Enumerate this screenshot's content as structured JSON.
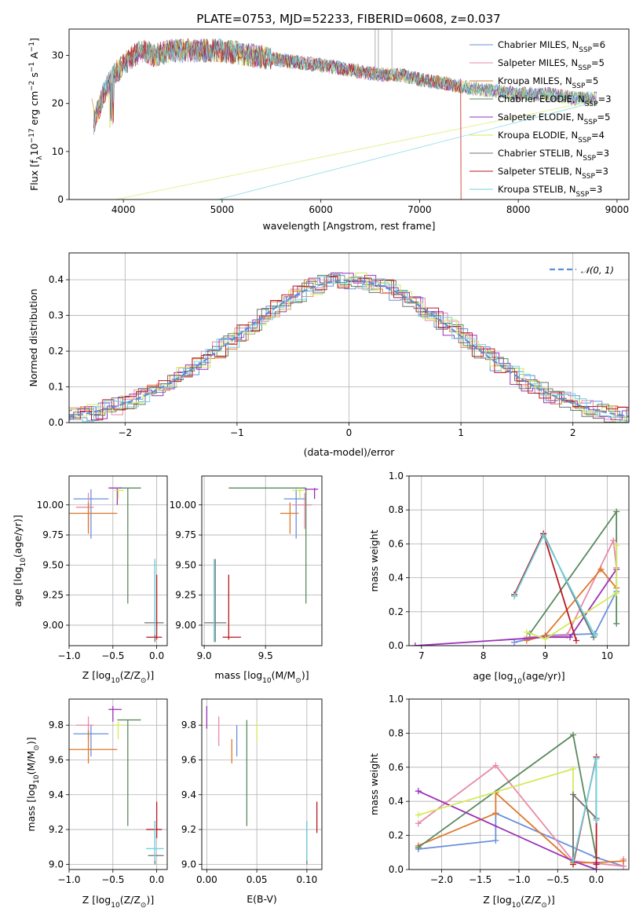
{
  "title": "PLATE=0753, MJD=52233, FIBERID=0608, z=0.037",
  "colors": {
    "Chabrier MILES": "#6a8fdc",
    "Salpeter MILES": "#e88aaa",
    "Kroupa MILES": "#e0782a",
    "Chabrier ELODIE": "#5a8a5e",
    "Salpeter ELODIE": "#9a30b8",
    "Kroupa ELODIE": "#d4ea5a",
    "Chabrier STELIB": "#707070",
    "Salpeter STELIB": "#b81820",
    "Kroupa STELIB": "#6fd4e0"
  },
  "legend_spectrum": [
    {
      "name": "Chabrier MILES, N",
      "sub": "SSP",
      "eq": "=6"
    },
    {
      "name": "Salpeter MILES, N",
      "sub": "SSP",
      "eq": "=5"
    },
    {
      "name": "Kroupa MILES, N",
      "sub": "SSP",
      "eq": "=5"
    },
    {
      "name": "Chabrier ELODIE, N",
      "sub": "SSP",
      "eq": "=3"
    },
    {
      "name": "Salpeter ELODIE, N",
      "sub": "SSP",
      "eq": "=5"
    },
    {
      "name": "Kroupa ELODIE, N",
      "sub": "SSP",
      "eq": "=4"
    },
    {
      "name": "Chabrier STELIB, N",
      "sub": "SSP",
      "eq": "=3"
    },
    {
      "name": "Salpeter STELIB, N",
      "sub": "SSP",
      "eq": "=3"
    },
    {
      "name": "Kroupa STELIB, N",
      "sub": "SSP",
      "eq": "=3"
    }
  ],
  "legend_hist": "𝒩(0, 1)",
  "chart_data": [
    {
      "type": "line",
      "panel": "spectrum",
      "xlabel": "wavelength [Angstrom, rest frame]",
      "ylabel_parts": [
        "Flux [f",
        "λ",
        "10",
        "−17",
        " erg cm",
        "−2",
        " s",
        "−1",
        " A",
        "−1",
        "]"
      ],
      "xlim": [
        3450,
        9120
      ],
      "ylim": [
        0,
        35.5
      ],
      "xticks": [
        4000,
        5000,
        6000,
        7000,
        8000,
        9000
      ],
      "yticks": [
        0,
        10,
        20,
        30
      ],
      "grid": false,
      "legend_position": "top-right",
      "approx_continuum_x": [
        3700,
        3800,
        3900,
        4000,
        4100,
        4200,
        4300,
        4500,
        4800,
        5000,
        5300,
        5600,
        6000,
        6300,
        6600,
        6800,
        7000,
        7300,
        7600,
        8000,
        8300,
        8600,
        8800
      ],
      "approx_continuum_y": [
        16,
        22,
        26,
        28,
        30,
        31,
        30,
        31,
        31,
        31,
        30,
        29,
        28,
        27,
        26,
        26,
        25,
        24,
        23,
        22,
        22,
        21,
        21
      ]
    },
    {
      "type": "line",
      "panel": "residual-histogram",
      "xlabel": "(data-model)/error",
      "ylabel": "Normed distribution",
      "xlim": [
        -2.5,
        2.5
      ],
      "ylim": [
        0,
        0.475
      ],
      "xticks": [
        -2,
        -1,
        0,
        1,
        2
      ],
      "yticks": [
        0.0,
        0.1,
        0.2,
        0.3,
        0.4
      ],
      "grid": true,
      "legend_position": "top-right",
      "series_reference": {
        "name": "𝒩(0, 1)",
        "mean": 0,
        "sigma": 1
      }
    },
    {
      "type": "scatter",
      "panel": "age-vs-Z",
      "xlabel_parts": [
        "Z [log",
        "10",
        "(Z/Z",
        "⊙",
        ")]"
      ],
      "ylabel_parts": [
        "age  [log",
        "10",
        "(age/yr)]"
      ],
      "xlim": [
        -1.0,
        0.12
      ],
      "ylim": [
        8.83,
        10.24
      ],
      "xticks": [
        -1.0,
        -0.5,
        0.0
      ],
      "yticks": [
        9.0,
        9.25,
        9.5,
        9.75,
        10.0
      ],
      "grid": true,
      "points": [
        {
          "s": "Chabrier MILES",
          "x": -0.75,
          "y": 10.05,
          "xl": -0.95,
          "xh": -0.55,
          "yl": 9.72,
          "yh": 10.13
        },
        {
          "s": "Salpeter MILES",
          "x": -0.78,
          "y": 9.98,
          "xl": -0.92,
          "xh": -0.72,
          "yl": 9.8,
          "yh": 10.1
        },
        {
          "s": "Kroupa MILES",
          "x": -0.78,
          "y": 9.93,
          "xl": -1.0,
          "xh": -0.45,
          "yl": 9.76,
          "yh": 10.02
        },
        {
          "s": "Chabrier ELODIE",
          "x": -0.33,
          "y": 10.14,
          "xl": -0.45,
          "xh": -0.18,
          "yl": 9.18,
          "yh": 10.14
        },
        {
          "s": "Salpeter ELODIE",
          "x": -0.45,
          "y": 10.14,
          "xl": -0.55,
          "xh": -0.4,
          "yl": 10.0,
          "yh": 10.14
        },
        {
          "s": "Kroupa ELODIE",
          "x": -0.44,
          "y": 10.12,
          "xl": -0.48,
          "xh": -0.38,
          "yl": 10.05,
          "yh": 10.14
        },
        {
          "s": "Chabrier STELIB",
          "x": -0.02,
          "y": 9.02,
          "xl": -0.14,
          "xh": 0.08,
          "yl": 8.86,
          "yh": 9.55
        },
        {
          "s": "Salpeter STELIB",
          "x": 0.0,
          "y": 8.9,
          "xl": -0.12,
          "xh": 0.06,
          "yl": 8.88,
          "yh": 9.42
        },
        {
          "s": "Kroupa STELIB",
          "x": -0.02,
          "y": 9.5,
          "xl": -0.03,
          "xh": -0.01,
          "yl": 8.92,
          "yh": 9.55
        }
      ]
    },
    {
      "type": "scatter",
      "panel": "age-vs-mass",
      "xlabel_parts": [
        "mass [log",
        "10",
        "(M/M",
        "⊙",
        ")]"
      ],
      "xlim": [
        8.98,
        9.96
      ],
      "ylim": [
        8.83,
        10.24
      ],
      "xticks": [
        9.0,
        9.5
      ],
      "yticks": [
        9.0,
        9.25,
        9.5,
        9.75,
        10.0
      ],
      "grid": true,
      "points": [
        {
          "s": "Chabrier MILES",
          "x": 9.75,
          "y": 10.05,
          "xl": 9.65,
          "xh": 9.83,
          "yl": 9.72,
          "yh": 10.13
        },
        {
          "s": "Salpeter MILES",
          "x": 9.82,
          "y": 10.0,
          "xl": 9.72,
          "xh": 9.88,
          "yl": 9.8,
          "yh": 10.1
        },
        {
          "s": "Kroupa MILES",
          "x": 9.7,
          "y": 9.93,
          "xl": 9.62,
          "xh": 9.77,
          "yl": 9.76,
          "yh": 10.02
        },
        {
          "s": "Chabrier ELODIE",
          "x": 9.83,
          "y": 10.14,
          "xl": 9.2,
          "xh": 9.83,
          "yl": 9.18,
          "yh": 10.14
        },
        {
          "s": "Salpeter ELODIE",
          "x": 9.9,
          "y": 10.13,
          "xl": 9.82,
          "xh": 9.93,
          "yl": 10.05,
          "yh": 10.14
        },
        {
          "s": "Kroupa ELODIE",
          "x": 9.78,
          "y": 10.12,
          "xl": 9.72,
          "xh": 9.82,
          "yl": 10.05,
          "yh": 10.14
        },
        {
          "s": "Chabrier STELIB",
          "x": 9.09,
          "y": 9.02,
          "xl": 9.0,
          "xh": 9.18,
          "yl": 8.86,
          "yh": 9.55
        },
        {
          "s": "Salpeter STELIB",
          "x": 9.2,
          "y": 8.9,
          "xl": 9.15,
          "xh": 9.3,
          "yl": 8.88,
          "yh": 9.42
        },
        {
          "s": "Kroupa STELIB",
          "x": 9.08,
          "y": 9.02,
          "xl": 9.08,
          "xh": 9.08,
          "yl": 8.86,
          "yh": 9.55
        }
      ]
    },
    {
      "type": "line",
      "panel": "mass-weight-vs-age",
      "xlabel_parts": [
        "age  [log",
        "10",
        "(age/yr)]"
      ],
      "ylabel": "mass weight",
      "xlim": [
        6.8,
        10.35
      ],
      "ylim": [
        0,
        1.0
      ],
      "xticks": [
        7,
        8,
        9,
        10
      ],
      "yticks": [
        0.0,
        0.2,
        0.4,
        0.6,
        0.8,
        1.0
      ],
      "grid": true,
      "series": [
        {
          "name": "Chabrier MILES",
          "x": [
            8.5,
            9.0,
            9.8,
            10.15
          ],
          "y": [
            0.02,
            0.06,
            0.07,
            0.32
          ]
        },
        {
          "name": "Salpeter MILES",
          "x": [
            8.7,
            9.35,
            10.1,
            10.15
          ],
          "y": [
            0.05,
            0.06,
            0.62,
            0.46
          ]
        },
        {
          "name": "Kroupa MILES",
          "x": [
            8.7,
            9.0,
            9.9,
            10.15
          ],
          "y": [
            0.03,
            0.06,
            0.45,
            0.34
          ]
        },
        {
          "name": "Chabrier ELODIE",
          "x": [
            8.75,
            10.15,
            10.15
          ],
          "y": [
            0.07,
            0.79,
            0.13
          ]
        },
        {
          "name": "Salpeter ELODIE",
          "x": [
            6.9,
            9.0,
            9.4,
            10.15
          ],
          "y": [
            0.0,
            0.05,
            0.05,
            0.45
          ]
        },
        {
          "name": "Kroupa ELODIE",
          "x": [
            8.7,
            9.0,
            10.15,
            10.15
          ],
          "y": [
            0.08,
            0.04,
            0.31,
            0.59
          ]
        },
        {
          "name": "Chabrier STELIB",
          "x": [
            8.5,
            8.97,
            9.78
          ],
          "y": [
            0.3,
            0.66,
            0.05
          ]
        },
        {
          "name": "Salpeter STELIB",
          "x": [
            8.5,
            8.97,
            9.5
          ],
          "y": [
            0.3,
            0.66,
            0.03
          ]
        },
        {
          "name": "Kroupa STELIB",
          "x": [
            8.5,
            8.97,
            9.8
          ],
          "y": [
            0.29,
            0.65,
            0.06
          ]
        }
      ]
    },
    {
      "type": "scatter",
      "panel": "mass-vs-Z",
      "xlabel_parts": [
        "Z [log",
        "10",
        "(Z/Z",
        "⊙",
        ")]"
      ],
      "ylabel_parts": [
        "mass [log",
        "10",
        "(M/M",
        "⊙",
        ")]"
      ],
      "xlim": [
        -1.0,
        0.12
      ],
      "ylim": [
        8.97,
        9.95
      ],
      "xticks": [
        -1.0,
        -0.5,
        0.0
      ],
      "yticks": [
        9.0,
        9.2,
        9.4,
        9.6,
        9.8
      ],
      "grid": true,
      "points": [
        {
          "s": "Chabrier MILES",
          "x": -0.75,
          "y": 9.75,
          "xl": -0.95,
          "xh": -0.55,
          "yl": 9.62,
          "yh": 9.8
        },
        {
          "s": "Salpeter MILES",
          "x": -0.78,
          "y": 9.8,
          "xl": -0.92,
          "xh": -0.72,
          "yl": 9.72,
          "yh": 9.85
        },
        {
          "s": "Kroupa MILES",
          "x": -0.78,
          "y": 9.66,
          "xl": -1.0,
          "xh": -0.45,
          "yl": 9.58,
          "yh": 9.77
        },
        {
          "s": "Chabrier ELODIE",
          "x": -0.33,
          "y": 9.83,
          "xl": -0.45,
          "xh": -0.18,
          "yl": 9.22,
          "yh": 9.83
        },
        {
          "s": "Salpeter ELODIE",
          "x": -0.5,
          "y": 9.89,
          "xl": -0.55,
          "xh": -0.4,
          "yl": 9.82,
          "yh": 9.91
        },
        {
          "s": "Kroupa ELODIE",
          "x": -0.44,
          "y": 9.8,
          "xl": -0.48,
          "xh": -0.38,
          "yl": 9.72,
          "yh": 9.82
        },
        {
          "s": "Chabrier STELIB",
          "x": -0.02,
          "y": 9.05,
          "xl": -0.1,
          "xh": 0.08,
          "yl": 9.0,
          "yh": 9.25
        },
        {
          "s": "Salpeter STELIB",
          "x": 0.0,
          "y": 9.2,
          "xl": -0.12,
          "xh": 0.06,
          "yl": 9.15,
          "yh": 9.36
        },
        {
          "s": "Kroupa STELIB",
          "x": -0.02,
          "y": 9.09,
          "xl": -0.12,
          "xh": 0.08,
          "yl": 9.02,
          "yh": 9.25
        }
      ]
    },
    {
      "type": "scatter",
      "panel": "mass-vs-EBV",
      "xlabel": "E(B-V)",
      "xlim": [
        -0.005,
        0.115
      ],
      "ylim": [
        8.97,
        9.95
      ],
      "xticks": [
        0.0,
        0.05,
        0.1
      ],
      "yticks": [
        9.0,
        9.2,
        9.4,
        9.6,
        9.8
      ],
      "grid": true,
      "points": [
        {
          "s": "Chabrier MILES",
          "x": 0.03,
          "y": 9.75,
          "yl": 9.62,
          "yh": 9.8
        },
        {
          "s": "Salpeter MILES",
          "x": 0.012,
          "y": 9.8,
          "yl": 9.68,
          "yh": 9.85
        },
        {
          "s": "Kroupa MILES",
          "x": 0.025,
          "y": 9.66,
          "yl": 9.58,
          "yh": 9.72
        },
        {
          "s": "Chabrier ELODIE",
          "x": 0.04,
          "y": 9.83,
          "yl": 9.22,
          "yh": 9.83
        },
        {
          "s": "Salpeter ELODIE",
          "x": 0.0,
          "y": 9.89,
          "yl": 9.78,
          "yh": 9.91
        },
        {
          "s": "Kroupa ELODIE",
          "x": 0.05,
          "y": 9.78,
          "yl": 9.7,
          "yh": 9.82
        },
        {
          "s": "Chabrier STELIB",
          "x": 0.1,
          "y": 9.05,
          "yl": 9.0,
          "yh": 9.25
        },
        {
          "s": "Salpeter STELIB",
          "x": 0.11,
          "y": 9.2,
          "yl": 9.18,
          "yh": 9.36
        },
        {
          "s": "Kroupa STELIB",
          "x": 0.1,
          "y": 9.09,
          "yl": 9.02,
          "yh": 9.25
        }
      ]
    },
    {
      "type": "line",
      "panel": "mass-weight-vs-Z",
      "xlabel_parts": [
        "Z [log",
        "10",
        "(Z/Z",
        "⊙",
        ")]"
      ],
      "ylabel": "mass weight",
      "xlim": [
        -2.42,
        0.42
      ],
      "ylim": [
        0,
        1.0
      ],
      "xticks": [
        -2.0,
        -1.5,
        -1.0,
        -0.5,
        0.0
      ],
      "yticks": [
        0.0,
        0.2,
        0.4,
        0.6,
        0.8,
        1.0
      ],
      "grid": true,
      "series": [
        {
          "name": "Chabrier MILES",
          "x": [
            -2.3,
            -1.3,
            -1.3,
            0.0,
            0.35
          ],
          "y": [
            0.12,
            0.17,
            0.33,
            0.07,
            0.02
          ]
        },
        {
          "name": "Salpeter MILES",
          "x": [
            -2.3,
            -1.3,
            -0.3,
            0.35,
            0.35
          ],
          "y": [
            0.27,
            0.61,
            0.05,
            0.02,
            0.06
          ]
        },
        {
          "name": "Kroupa MILES",
          "x": [
            -2.3,
            -1.3,
            -1.3,
            -0.3,
            0.0,
            0.35
          ],
          "y": [
            0.14,
            0.33,
            0.45,
            0.04,
            0.04,
            0.05
          ]
        },
        {
          "name": "Chabrier ELODIE",
          "x": [
            -2.3,
            -0.3,
            0.0
          ],
          "y": [
            0.13,
            0.79,
            0.07
          ]
        },
        {
          "name": "Salpeter ELODIE",
          "x": [
            -2.3,
            -0.3,
            0.0,
            0.0
          ],
          "y": [
            0.46,
            0.05,
            0.0,
            0.04
          ]
        },
        {
          "name": "Kroupa ELODIE",
          "x": [
            -2.3,
            -0.3,
            -0.3
          ],
          "y": [
            0.32,
            0.59,
            0.03
          ]
        },
        {
          "name": "Chabrier STELIB",
          "x": [
            -0.3,
            -0.3,
            0.0,
            0.0
          ],
          "y": [
            0.05,
            0.44,
            0.3,
            0.66
          ]
        },
        {
          "name": "Salpeter STELIB",
          "x": [
            -0.3,
            0.0,
            0.0
          ],
          "y": [
            0.03,
            0.66,
            0.03
          ]
        },
        {
          "name": "Kroupa STELIB",
          "x": [
            -0.3,
            0.0,
            0.0
          ],
          "y": [
            0.05,
            0.65,
            0.29
          ]
        }
      ]
    }
  ]
}
